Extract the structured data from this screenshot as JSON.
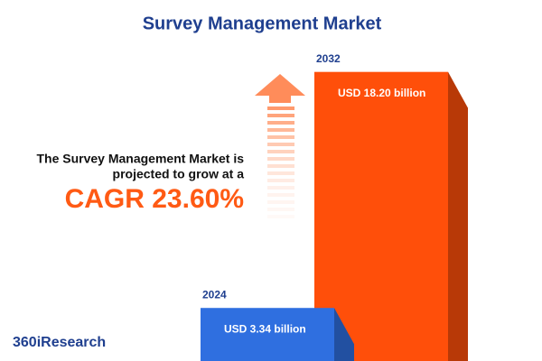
{
  "chart_data": {
    "type": "bar",
    "title": "Survey Management Market",
    "categories": [
      "2024",
      "2032"
    ],
    "values": [
      3.34,
      18.2
    ],
    "value_labels": [
      "USD 3.34 billion",
      "USD 18.20 billion"
    ],
    "colors": [
      "#2f6fe0",
      "#ff4f0a"
    ],
    "ylim": [
      0,
      20
    ],
    "annotation": [
      "The Survey Management Market is",
      "projected to grow at a"
    ],
    "highlight": "CAGR 23.60%",
    "brand": "360iResearch"
  }
}
